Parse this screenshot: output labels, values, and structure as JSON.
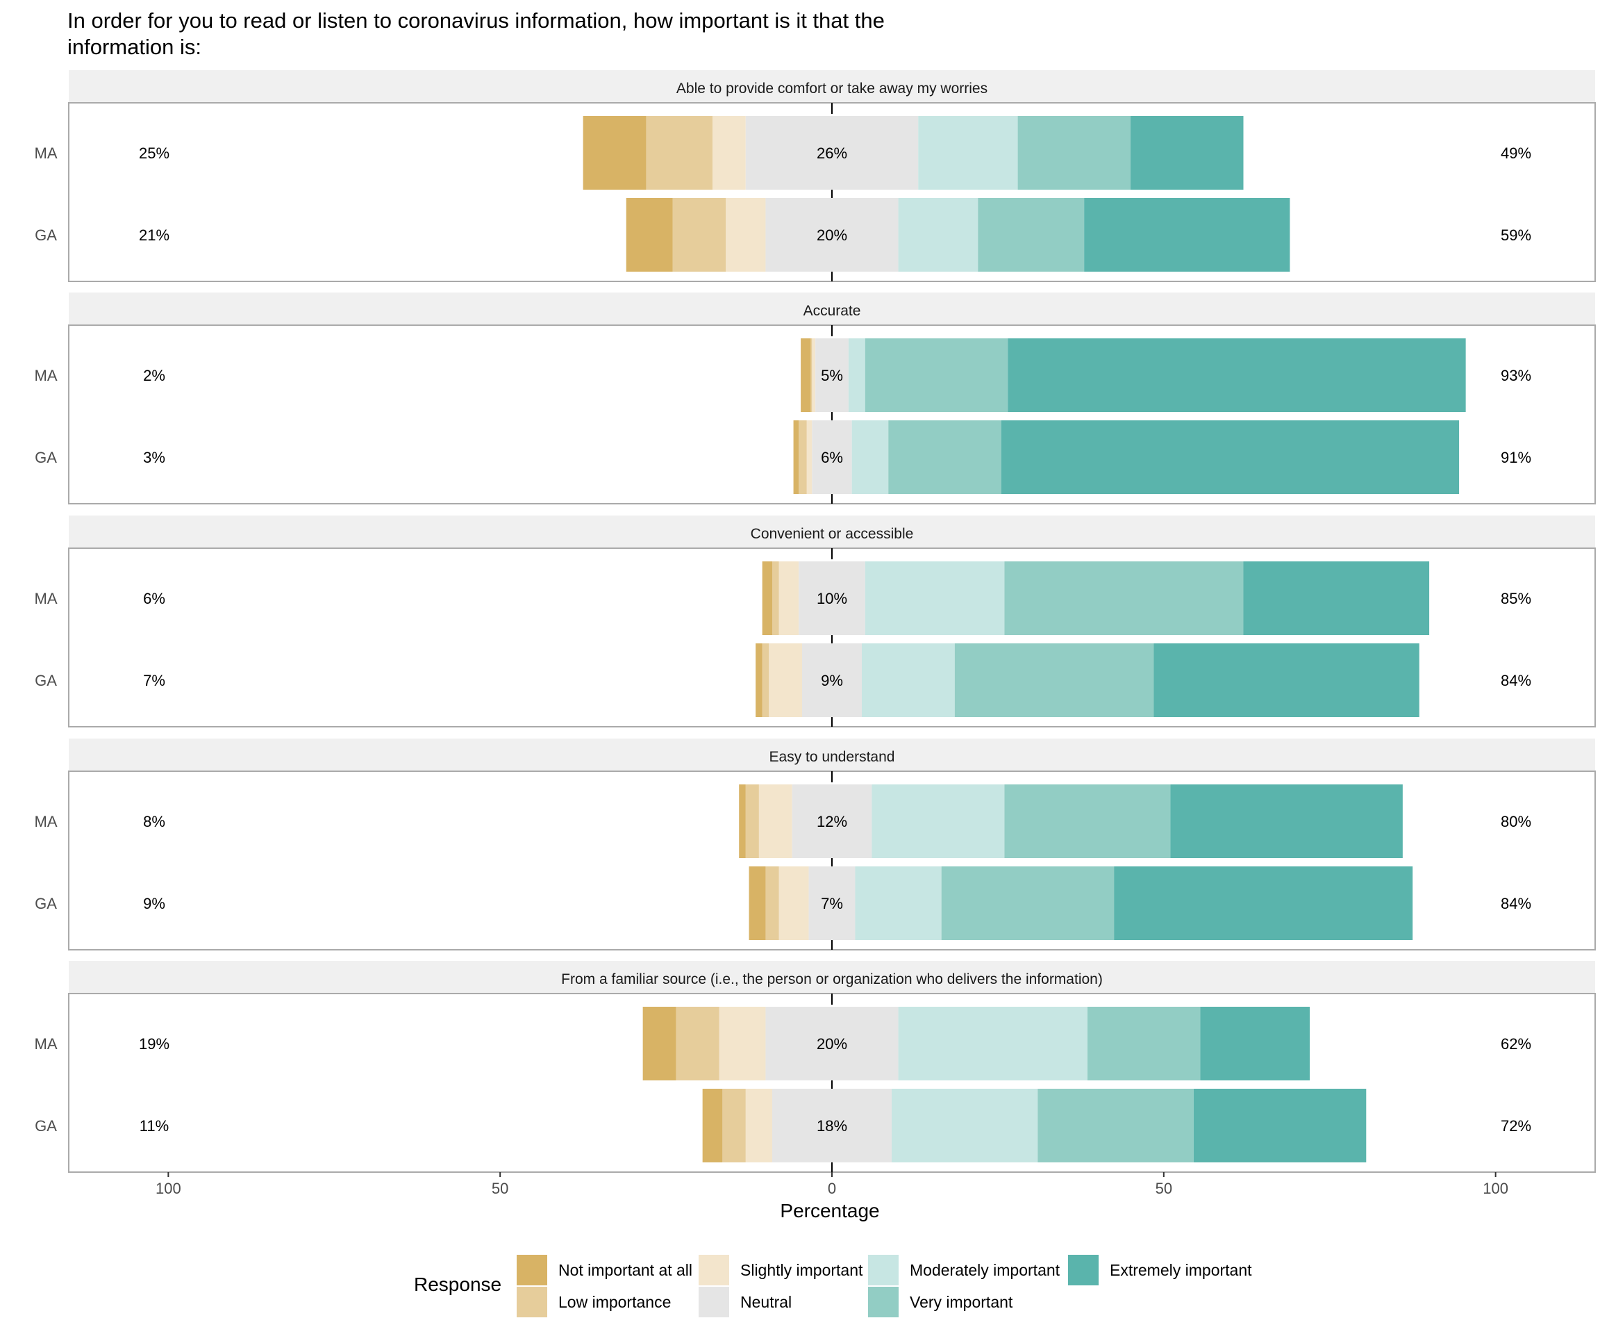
{
  "chart_data": {
    "type": "bar",
    "subtype": "diverging-stacked-likert",
    "title": "In order for you to read or listen to coronavirus information, how important is it that the information is:",
    "title_lines": [
      "In order for you to read or listen to coronavirus information, how important is it that the",
      "information is:"
    ],
    "xlabel": "Percentage",
    "xlim": [
      -115,
      115
    ],
    "xticks": [
      -100,
      -50,
      0,
      50,
      100
    ],
    "xtick_labels": [
      "100",
      "50",
      "0",
      "50",
      "100"
    ],
    "legend": {
      "title": "Response",
      "position": "bottom",
      "items": [
        {
          "name": "Not important at all",
          "color": "#D8B365"
        },
        {
          "name": "Low importance",
          "color": "#E6CD9B"
        },
        {
          "name": "Slightly important",
          "color": "#F3E5CC"
        },
        {
          "name": "Neutral",
          "color": "#E5E5E5"
        },
        {
          "name": "Moderately important",
          "color": "#C7E6E3"
        },
        {
          "name": "Very important",
          "color": "#92CDC4"
        },
        {
          "name": "Extremely important",
          "color": "#5AB4AC"
        }
      ]
    },
    "panels": [
      {
        "title": "Able to provide comfort or take away my worries",
        "rows": [
          {
            "group": "MA",
            "values": [
              9.5,
              10,
              5,
              26,
              15,
              17,
              17
            ],
            "low_label": "25%",
            "neutral_label": "26%",
            "high_label": "49%"
          },
          {
            "group": "GA",
            "values": [
              7,
              8,
              6,
              20,
              12,
              16,
              31
            ],
            "low_label": "21%",
            "neutral_label": "20%",
            "high_label": "59%"
          }
        ]
      },
      {
        "title": "Accurate",
        "rows": [
          {
            "group": "MA",
            "values": [
              1.5,
              0.2,
              0.5,
              5,
              2.5,
              21.5,
              69
            ],
            "low_label": "2%",
            "neutral_label": "5%",
            "high_label": "93%"
          },
          {
            "group": "GA",
            "values": [
              0.8,
              1.2,
              0.8,
              6,
              5.5,
              17,
              69
            ],
            "low_label": "3%",
            "neutral_label": "6%",
            "high_label": "91%"
          }
        ]
      },
      {
        "title": "Convenient or accessible",
        "rows": [
          {
            "group": "MA",
            "values": [
              1.5,
              1,
              3,
              10,
              21,
              36,
              28
            ],
            "low_label": "6%",
            "neutral_label": "10%",
            "high_label": "85%"
          },
          {
            "group": "GA",
            "values": [
              1,
              1,
              5,
              9,
              14,
              30,
              40
            ],
            "low_label": "7%",
            "neutral_label": "9%",
            "high_label": "84%"
          }
        ]
      },
      {
        "title": "Easy to understand",
        "rows": [
          {
            "group": "MA",
            "values": [
              1,
              2,
              5,
              12,
              20,
              25,
              35
            ],
            "low_label": "8%",
            "neutral_label": "12%",
            "high_label": "80%"
          },
          {
            "group": "GA",
            "values": [
              2.5,
              2,
              4.5,
              7,
              13,
              26,
              45
            ],
            "low_label": "9%",
            "neutral_label": "7%",
            "high_label": "84%"
          }
        ]
      },
      {
        "title": "From a familiar source (i.e., the person or organization who delivers the information)",
        "rows": [
          {
            "group": "MA",
            "values": [
              5,
              6.5,
              7,
              20,
              28.5,
              17,
              16.5
            ],
            "low_label": "19%",
            "neutral_label": "20%",
            "high_label": "62%"
          },
          {
            "group": "GA",
            "values": [
              3,
              3.5,
              4,
              18,
              22,
              23.5,
              26
            ],
            "low_label": "11%",
            "neutral_label": "18%",
            "high_label": "72%"
          }
        ]
      }
    ]
  }
}
